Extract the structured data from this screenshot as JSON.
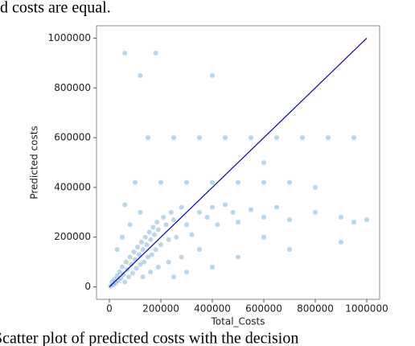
{
  "header_text": "d costs are equal.",
  "caption": "Scatter plot of predicted costs with the decision",
  "chart_data": {
    "type": "scatter",
    "x_label": "Total_Costs",
    "y_label": "Predicted costs",
    "color": "#1f77b4",
    "x": [
      5000,
      10000,
      15000,
      20000,
      25000,
      30000,
      35000,
      40000,
      45000,
      50000,
      55000,
      60000,
      65000,
      70000,
      75000,
      80000,
      85000,
      90000,
      95000,
      100000,
      105000,
      110000,
      115000,
      120000,
      125000,
      130000,
      135000,
      140000,
      145000,
      150000,
      155000,
      160000,
      165000,
      170000,
      175000,
      180000,
      185000,
      190000,
      200000,
      210000,
      220000,
      230000,
      240000,
      250000,
      260000,
      280000,
      300000,
      320000,
      350000,
      380000,
      400000,
      420000,
      450000,
      480000,
      500000,
      550000,
      600000,
      650000,
      700000,
      800000,
      900000,
      950000,
      100000,
      200000,
      300000,
      400000,
      500000,
      600000,
      700000,
      150000,
      250000,
      350000,
      450000,
      550000,
      650000,
      750000,
      850000,
      950000,
      60000,
      180000,
      400000,
      120000,
      600000,
      800000,
      900000,
      700000,
      500000,
      400000,
      300000,
      250000,
      600000,
      1000000,
      350000,
      280000,
      230000,
      190000,
      160000,
      130000,
      30000,
      50000,
      80000,
      120000,
      60000
    ],
    "y": [
      3000,
      20000,
      8000,
      30000,
      15000,
      45000,
      25000,
      60000,
      35000,
      80000,
      50000,
      20000,
      100000,
      70000,
      40000,
      120000,
      90000,
      55000,
      140000,
      110000,
      75000,
      160000,
      130000,
      90000,
      180000,
      150000,
      100000,
      200000,
      170000,
      120000,
      220000,
      190000,
      130000,
      240000,
      210000,
      150000,
      260000,
      230000,
      170000,
      280000,
      250000,
      190000,
      300000,
      270000,
      200000,
      320000,
      250000,
      210000,
      300000,
      280000,
      320000,
      250000,
      330000,
      300000,
      260000,
      310000,
      280000,
      320000,
      270000,
      300000,
      280000,
      260000,
      420000,
      420000,
      420000,
      420000,
      420000,
      420000,
      420000,
      600000,
      600000,
      600000,
      600000,
      600000,
      600000,
      600000,
      600000,
      600000,
      940000,
      940000,
      850000,
      850000,
      500000,
      400000,
      180000,
      150000,
      120000,
      80000,
      60000,
      40000,
      200000,
      270000,
      150000,
      120000,
      100000,
      80000,
      60000,
      40000,
      150000,
      200000,
      250000,
      300000,
      330000
    ],
    "line": {
      "x": [
        0,
        1000000
      ],
      "y": [
        0,
        1000000
      ],
      "color": "#0000cc"
    },
    "xlim": [
      -50000,
      1050000
    ],
    "ylim": [
      -50000,
      1050000
    ],
    "xticks": [
      0,
      200000,
      400000,
      600000,
      800000,
      1000000
    ],
    "yticks": [
      0,
      200000,
      400000,
      600000,
      800000,
      1000000
    ]
  }
}
